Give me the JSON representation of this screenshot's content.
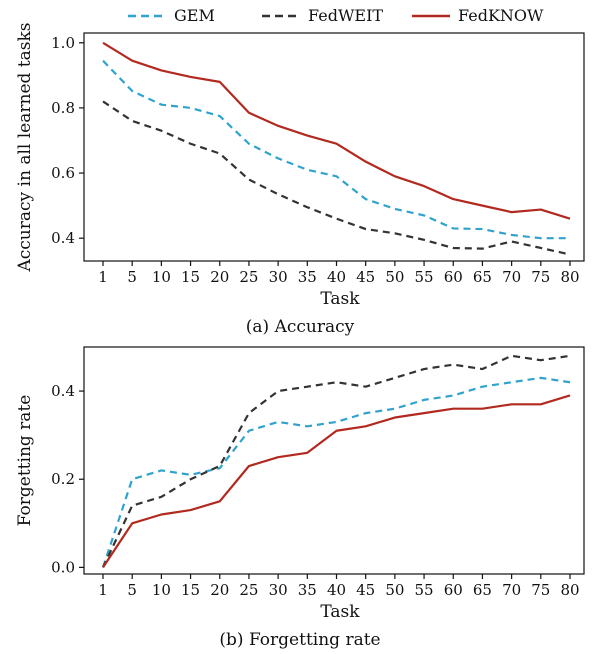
{
  "legend": {
    "items": [
      {
        "name": "GEM",
        "color": "#2fa3cc",
        "dash": "dashed"
      },
      {
        "name": "FedWEIT",
        "color": "#333333",
        "dash": "dashed"
      },
      {
        "name": "FedKNOW",
        "color": "#b22a1f",
        "dash": "solid"
      }
    ]
  },
  "chart_data": [
    {
      "type": "line",
      "caption": "(a) Accuracy",
      "xlabel": "Task",
      "ylabel": "Accuracy in all learned tasks",
      "categories": [
        "1",
        "5",
        "10",
        "15",
        "20",
        "25",
        "30",
        "35",
        "40",
        "45",
        "50",
        "55",
        "60",
        "65",
        "70",
        "75",
        "80"
      ],
      "ylim": [
        0.33,
        1.03
      ],
      "yticks": [
        "0.4",
        "0.6",
        "0.8",
        "1.0"
      ],
      "ytick_values": [
        0.4,
        0.6,
        0.8,
        1.0
      ],
      "series": [
        {
          "name": "GEM",
          "values": [
            0.945,
            0.852,
            0.81,
            0.8,
            0.775,
            0.69,
            0.645,
            0.61,
            0.59,
            0.52,
            0.49,
            0.47,
            0.43,
            0.428,
            0.41,
            0.4,
            0.4
          ]
        },
        {
          "name": "FedWEIT",
          "values": [
            0.82,
            0.76,
            0.73,
            0.69,
            0.66,
            0.58,
            0.535,
            0.495,
            0.46,
            0.428,
            0.415,
            0.395,
            0.37,
            0.368,
            0.39,
            0.37,
            0.35
          ]
        },
        {
          "name": "FedKNOW",
          "values": [
            1.0,
            0.945,
            0.915,
            0.895,
            0.88,
            0.785,
            0.745,
            0.715,
            0.69,
            0.635,
            0.59,
            0.56,
            0.52,
            0.5,
            0.48,
            0.488,
            0.46
          ]
        }
      ]
    },
    {
      "type": "line",
      "caption": "(b) Forgetting rate",
      "xlabel": "Task",
      "ylabel": "Forgetting rate",
      "categories": [
        "1",
        "5",
        "10",
        "15",
        "20",
        "25",
        "30",
        "35",
        "40",
        "45",
        "50",
        "55",
        "60",
        "65",
        "70",
        "75",
        "80"
      ],
      "ylim": [
        -0.015,
        0.5
      ],
      "yticks": [
        "0.0",
        "0.2",
        "0.4"
      ],
      "ytick_values": [
        0.0,
        0.2,
        0.4
      ],
      "series": [
        {
          "name": "GEM",
          "values": [
            0.0,
            0.2,
            0.22,
            0.21,
            0.225,
            0.31,
            0.33,
            0.32,
            0.33,
            0.35,
            0.36,
            0.38,
            0.39,
            0.41,
            0.42,
            0.43,
            0.42
          ]
        },
        {
          "name": "FedWEIT",
          "values": [
            0.0,
            0.14,
            0.16,
            0.2,
            0.23,
            0.35,
            0.4,
            0.41,
            0.42,
            0.41,
            0.43,
            0.45,
            0.46,
            0.45,
            0.48,
            0.47,
            0.48
          ]
        },
        {
          "name": "FedKNOW",
          "values": [
            0.0,
            0.1,
            0.12,
            0.13,
            0.15,
            0.23,
            0.25,
            0.26,
            0.31,
            0.32,
            0.34,
            0.35,
            0.36,
            0.36,
            0.37,
            0.37,
            0.39
          ]
        }
      ]
    }
  ]
}
